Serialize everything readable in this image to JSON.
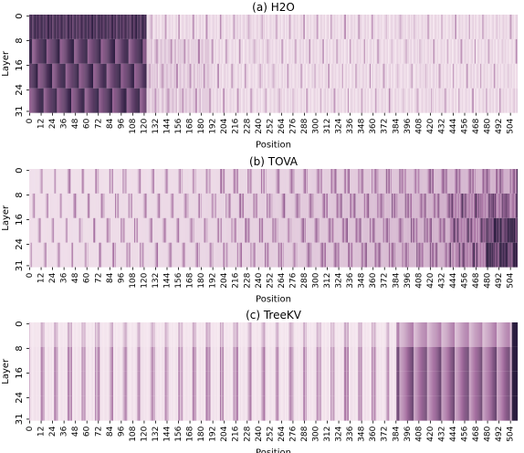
{
  "chart_data": [
    {
      "type": "heatmap",
      "title": "(a) H2O",
      "xlabel": "Position",
      "ylabel": "Layer",
      "x_range": [
        0,
        511
      ],
      "y_range": [
        0,
        31
      ],
      "x_tick_labels": [
        "0",
        "12",
        "24",
        "36",
        "48",
        "60",
        "72",
        "84",
        "96",
        "108",
        "120",
        "132",
        "144",
        "156",
        "168",
        "180",
        "192",
        "204",
        "216",
        "228",
        "240",
        "252",
        "264",
        "276",
        "288",
        "300",
        "312",
        "324",
        "336",
        "348",
        "360",
        "372",
        "384",
        "396",
        "408",
        "420",
        "432",
        "444",
        "456",
        "468",
        "480",
        "492",
        "504"
      ],
      "y_tick_labels": [
        "0",
        "8",
        "16",
        "24",
        "31"
      ],
      "colormap": [
        "#f7eaf1",
        "#2b1d3f"
      ],
      "pattern": "dense high-retention block at positions 0-~120 across all layers; sparse faint values beyond position ~130"
    },
    {
      "type": "heatmap",
      "title": "(b) TOVA",
      "xlabel": "Position",
      "ylabel": "Layer",
      "x_range": [
        0,
        511
      ],
      "y_range": [
        0,
        31
      ],
      "x_tick_labels": [
        "0",
        "12",
        "24",
        "36",
        "48",
        "60",
        "72",
        "84",
        "96",
        "108",
        "120",
        "132",
        "144",
        "156",
        "168",
        "180",
        "192",
        "204",
        "216",
        "228",
        "240",
        "252",
        "264",
        "276",
        "288",
        "300",
        "312",
        "324",
        "336",
        "348",
        "360",
        "372",
        "384",
        "396",
        "408",
        "420",
        "432",
        "444",
        "456",
        "468",
        "480",
        "492",
        "504"
      ],
      "y_tick_labels": [
        "0",
        "8",
        "16",
        "24",
        "31"
      ],
      "colormap": [
        "#f7eaf1",
        "#2b1d3f"
      ],
      "pattern": "scattered retention across all positions, increasing toward the most recent positions (~450-511), strongest in lower layers"
    },
    {
      "type": "heatmap",
      "title": "(c) TreeKV",
      "xlabel": "Position",
      "ylabel": "Layer",
      "x_range": [
        0,
        511
      ],
      "y_range": [
        0,
        31
      ],
      "x_tick_labels": [
        "0",
        "12",
        "24",
        "36",
        "48",
        "60",
        "72",
        "84",
        "96",
        "108",
        "120",
        "132",
        "144",
        "156",
        "168",
        "180",
        "192",
        "204",
        "216",
        "228",
        "240",
        "252",
        "264",
        "276",
        "288",
        "300",
        "312",
        "324",
        "336",
        "348",
        "360",
        "372",
        "384",
        "396",
        "408",
        "420",
        "432",
        "444",
        "456",
        "468",
        "480",
        "492",
        "504"
      ],
      "y_tick_labels": [
        "0",
        "8",
        "16",
        "24",
        "31"
      ],
      "colormap": [
        "#f7eaf1",
        "#2b1d3f"
      ],
      "pattern": "vertical-stripe retention consistent across layers, sparse at early positions, denser after ~385, darkest column at last position"
    }
  ]
}
